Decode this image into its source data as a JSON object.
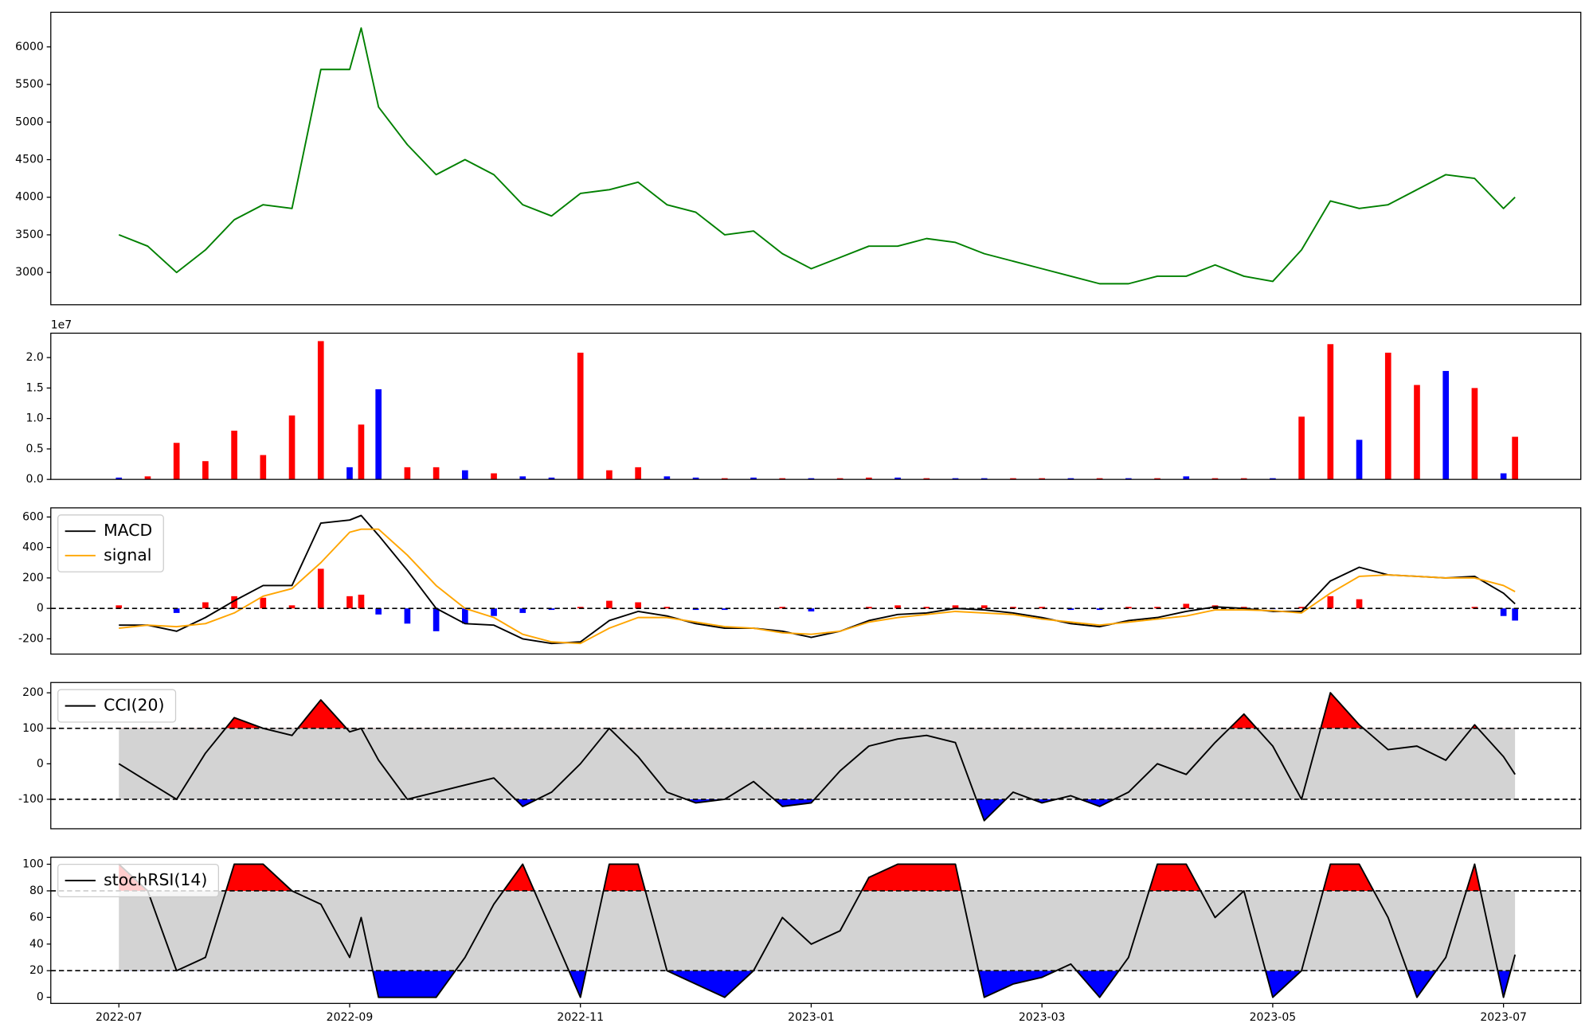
{
  "chart_data": [
    {
      "type": "line",
      "x": [
        0,
        0.25,
        0.5,
        0.75,
        1,
        1.25,
        1.5,
        1.75,
        2,
        2.1,
        2.25,
        2.5,
        2.75,
        3,
        3.25,
        3.5,
        3.75,
        4,
        4.25,
        4.5,
        4.75,
        5,
        5.25,
        5.5,
        5.75,
        6,
        6.25,
        6.5,
        6.75,
        7,
        7.25,
        7.5,
        7.75,
        8,
        8.25,
        8.5,
        8.75,
        9,
        9.25,
        9.5,
        9.75,
        10,
        10.25,
        10.5,
        10.75,
        11,
        11.25,
        11.5,
        11.75,
        12,
        12.1
      ],
      "series": [
        {
          "color": "#008000",
          "values": [
            3500,
            3350,
            3000,
            3300,
            3700,
            3900,
            3850,
            5700,
            5700,
            6250,
            5200,
            4700,
            4300,
            4500,
            4300,
            3900,
            3750,
            4050,
            4100,
            4200,
            3900,
            3800,
            3500,
            3550,
            3250,
            3050,
            3200,
            3350,
            3350,
            3450,
            3400,
            3250,
            3150,
            3050,
            2950,
            2850,
            2850,
            2950,
            2950,
            3100,
            2950,
            2880,
            3300,
            3950,
            3850,
            3900,
            4100,
            4300,
            4250,
            3850,
            4000
          ]
        }
      ],
      "xlim": [
        -0.59,
        12.67
      ],
      "ylim": [
        2570,
        6460
      ],
      "yticks": [
        3000,
        3500,
        4000,
        4500,
        5000,
        5500,
        6000
      ]
    },
    {
      "type": "bar",
      "x": [
        0,
        0.25,
        0.5,
        0.75,
        1,
        1.25,
        1.5,
        1.75,
        2,
        2.1,
        2.25,
        2.5,
        2.75,
        3,
        3.25,
        3.5,
        3.75,
        4,
        4.25,
        4.5,
        4.75,
        5,
        5.25,
        5.5,
        5.75,
        6,
        6.25,
        6.5,
        6.75,
        7,
        7.25,
        7.5,
        7.75,
        8,
        8.25,
        8.5,
        8.75,
        9,
        9.25,
        9.5,
        9.75,
        10,
        10.25,
        10.5,
        10.75,
        11,
        11.25,
        11.5,
        11.75,
        12,
        12.1
      ],
      "values": [
        0.03,
        0.05,
        0.6,
        0.3,
        0.8,
        0.4,
        1.05,
        2.27,
        0.2,
        0.9,
        1.48,
        0.2,
        0.2,
        0.15,
        0.1,
        0.05,
        0.03,
        2.08,
        0.15,
        0.2,
        0.05,
        0.03,
        0.02,
        0.03,
        0.02,
        0.02,
        0.02,
        0.03,
        0.03,
        0.02,
        0.02,
        0.02,
        0.02,
        0.02,
        0.02,
        0.02,
        0.02,
        0.02,
        0.05,
        0.02,
        0.02,
        0.02,
        1.03,
        2.22,
        0.65,
        2.08,
        1.55,
        1.78,
        1.5,
        0.1,
        0.7
      ],
      "colors": [
        "blue",
        "red",
        "red",
        "red",
        "red",
        "red",
        "red",
        "red",
        "blue",
        "red",
        "blue",
        "red",
        "red",
        "blue",
        "red",
        "blue",
        "blue",
        "red",
        "red",
        "red",
        "blue",
        "blue",
        "red",
        "blue",
        "red",
        "blue",
        "red",
        "red",
        "blue",
        "red",
        "blue",
        "blue",
        "red",
        "red",
        "blue",
        "red",
        "blue",
        "red",
        "blue",
        "red",
        "red",
        "blue",
        "red",
        "red",
        "blue",
        "red",
        "red",
        "blue",
        "red",
        "blue",
        "red"
      ],
      "y_offset_label": "1e7",
      "xlim": [
        -0.59,
        12.67
      ],
      "ylim": [
        0,
        2.4
      ],
      "yticks": [
        {
          "value": 0,
          "label": "0.0"
        },
        {
          "value": 0.5,
          "label": "0.5"
        },
        {
          "value": 1,
          "label": "1.0"
        },
        {
          "value": 1.5,
          "label": "1.5"
        },
        {
          "value": 2,
          "label": "2.0"
        }
      ]
    },
    {
      "type": "macd",
      "x": [
        0,
        0.25,
        0.5,
        0.75,
        1,
        1.25,
        1.5,
        1.75,
        2,
        2.1,
        2.25,
        2.5,
        2.75,
        3,
        3.25,
        3.5,
        3.75,
        4,
        4.25,
        4.5,
        4.75,
        5,
        5.25,
        5.5,
        5.75,
        6,
        6.25,
        6.5,
        6.75,
        7,
        7.25,
        7.5,
        7.75,
        8,
        8.25,
        8.5,
        8.75,
        9,
        9.25,
        9.5,
        9.75,
        10,
        10.25,
        10.5,
        10.75,
        11,
        11.25,
        11.5,
        11.75,
        12,
        12.1
      ],
      "series": [
        {
          "name": "MACD",
          "color": "black",
          "values": [
            -110,
            -110,
            -150,
            -60,
            50,
            150,
            150,
            560,
            580,
            610,
            480,
            250,
            0,
            -100,
            -110,
            -200,
            -230,
            -220,
            -80,
            -20,
            -50,
            -100,
            -130,
            -130,
            -150,
            -190,
            -150,
            -80,
            -40,
            -30,
            0,
            -10,
            -30,
            -60,
            -100,
            -120,
            -80,
            -60,
            -20,
            10,
            0,
            -20,
            -20,
            180,
            270,
            220,
            210,
            200,
            210,
            100,
            30
          ]
        },
        {
          "name": "signal",
          "color": "orange",
          "values": [
            -130,
            -110,
            -120,
            -100,
            -30,
            80,
            130,
            300,
            500,
            520,
            520,
            350,
            150,
            0,
            -60,
            -170,
            -220,
            -230,
            -130,
            -60,
            -60,
            -90,
            -120,
            -130,
            -160,
            -170,
            -150,
            -90,
            -60,
            -40,
            -20,
            -30,
            -40,
            -70,
            -90,
            -110,
            -90,
            -70,
            -50,
            -10,
            -10,
            -15,
            -30,
            100,
            210,
            220,
            210,
            200,
            200,
            150,
            110
          ]
        }
      ],
      "histogram": {
        "pos_color": "red",
        "neg_color": "blue",
        "values": [
          20,
          0,
          -30,
          40,
          80,
          70,
          20,
          260,
          80,
          90,
          -40,
          -100,
          -150,
          -100,
          -50,
          -30,
          -10,
          10,
          50,
          40,
          10,
          -10,
          -10,
          0,
          10,
          -20,
          0,
          10,
          20,
          10,
          20,
          20,
          10,
          10,
          -10,
          -10,
          10,
          10,
          30,
          20,
          10,
          -5,
          10,
          80,
          60,
          0,
          0,
          0,
          10,
          -50,
          -80
        ]
      },
      "levels": [
        0
      ],
      "legend": "upper left",
      "xlim": [
        -0.59,
        12.67
      ],
      "ylim": [
        -300,
        660
      ],
      "yticks": [
        -200,
        0,
        200,
        400,
        600
      ]
    },
    {
      "type": "band",
      "x": [
        0,
        0.25,
        0.5,
        0.75,
        1,
        1.25,
        1.5,
        1.75,
        2,
        2.1,
        2.25,
        2.5,
        2.75,
        3,
        3.25,
        3.5,
        3.75,
        4,
        4.25,
        4.5,
        4.75,
        5,
        5.25,
        5.5,
        5.75,
        6,
        6.25,
        6.5,
        6.75,
        7,
        7.25,
        7.5,
        7.75,
        8,
        8.25,
        8.5,
        8.75,
        9,
        9.25,
        9.5,
        9.75,
        10,
        10.25,
        10.5,
        10.75,
        11,
        11.25,
        11.5,
        11.75,
        12,
        12.1
      ],
      "series": [
        {
          "name": "CCI(20)",
          "color": "black",
          "values": [
            0,
            -50,
            -100,
            30,
            130,
            100,
            80,
            180,
            90,
            100,
            10,
            -100,
            -80,
            -60,
            -40,
            -120,
            -80,
            0,
            100,
            20,
            -80,
            -110,
            -100,
            -50,
            -120,
            -110,
            -20,
            50,
            70,
            80,
            60,
            -160,
            -80,
            -110,
            -90,
            -120,
            -80,
            0,
            -30,
            60,
            140,
            50,
            -100,
            200,
            110,
            40,
            50,
            10,
            110,
            20,
            -30
          ]
        }
      ],
      "levels": [
        -100,
        100
      ],
      "band_color": "lightgray",
      "above_color": "red",
      "below_color": "blue",
      "legend": "upper left",
      "xlim": [
        -0.59,
        12.67
      ],
      "ylim": [
        -183,
        229
      ],
      "yticks": [
        -100,
        0,
        100,
        200
      ]
    },
    {
      "type": "band",
      "x": [
        0,
        0.25,
        0.5,
        0.75,
        1,
        1.25,
        1.5,
        1.75,
        2,
        2.1,
        2.25,
        2.5,
        2.75,
        3,
        3.25,
        3.5,
        3.75,
        4,
        4.25,
        4.5,
        4.75,
        5,
        5.25,
        5.5,
        5.75,
        6,
        6.25,
        6.5,
        6.75,
        7,
        7.25,
        7.5,
        7.75,
        8,
        8.25,
        8.5,
        8.75,
        9,
        9.25,
        9.5,
        9.75,
        10,
        10.25,
        10.5,
        10.75,
        11,
        11.25,
        11.5,
        11.75,
        12,
        12.1
      ],
      "series": [
        {
          "name": "stochRSI(14)",
          "color": "black",
          "values": [
            100,
            80,
            20,
            30,
            100,
            100,
            80,
            70,
            30,
            60,
            0,
            0,
            0,
            30,
            70,
            100,
            50,
            0,
            100,
            100,
            20,
            10,
            0,
            20,
            60,
            40,
            50,
            90,
            100,
            100,
            100,
            0,
            10,
            15,
            25,
            0,
            30,
            100,
            100,
            60,
            80,
            0,
            20,
            100,
            100,
            60,
            0,
            30,
            100,
            0,
            32
          ]
        }
      ],
      "levels": [
        20,
        80
      ],
      "band_color": "lightgray",
      "above_color": "red",
      "below_color": "blue",
      "legend": "upper left",
      "xlim": [
        -0.59,
        12.67
      ],
      "ylim": [
        -4.6,
        105.3
      ],
      "yticks": [
        0,
        20,
        40,
        60,
        80,
        100
      ],
      "xticks": [
        {
          "value": 0,
          "label": "2022-07"
        },
        {
          "value": 2,
          "label": "2022-09"
        },
        {
          "value": 4,
          "label": "2022-11"
        },
        {
          "value": 6,
          "label": "2023-01"
        },
        {
          "value": 8,
          "label": "2023-03"
        },
        {
          "value": 10,
          "label": "2023-05"
        },
        {
          "value": 12,
          "label": "2023-07"
        }
      ]
    }
  ]
}
